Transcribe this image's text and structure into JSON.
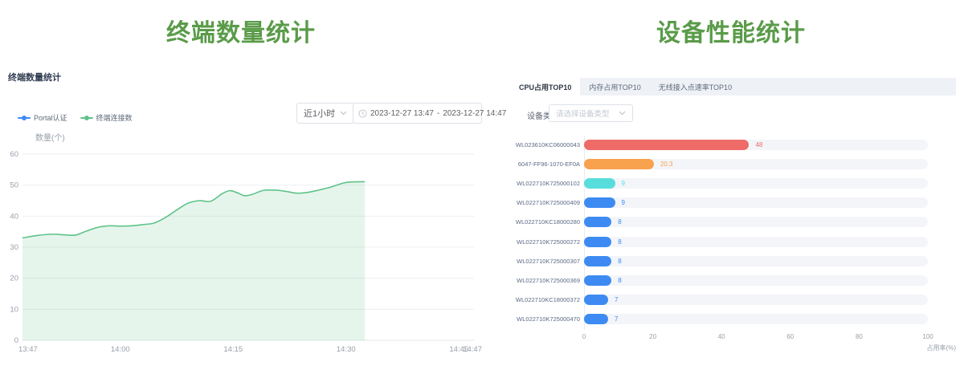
{
  "colors": {
    "title_green": "#5A9B49",
    "navy": "#303C52",
    "blue": "#3D8BF2",
    "line_green": "#5FC38A",
    "bar_red": "#EE6B68",
    "bar_orange": "#F8A24D",
    "bar_cyan": "#57DEDC",
    "bar_blue": "#3D8BF2",
    "bar_track": "#F3F5F9",
    "grid": "#ECEFF3",
    "tick_text": "#98A0AA"
  },
  "left": {
    "title_banner": "终端数量统计",
    "panel_title": "终端数量统计",
    "time_select": {
      "value": "近1小时"
    },
    "date_range": {
      "start": "2023-12-27 13:47",
      "sep": "-",
      "end": "2023-12-27 14:47"
    }
  },
  "right": {
    "title_banner": "设备性能统计",
    "tabs": [
      "CPU占用TOP10",
      "内存占用TOP10",
      "无线接入点速率TOP10"
    ],
    "active_tab": 0,
    "device_type_label": "设备类型",
    "device_type_placeholder": "请选择设备类型"
  },
  "chart_data": [
    {
      "id": "terminal-count-trend",
      "type": "area",
      "title": "终端数量统计",
      "ylabel": "数量(个)",
      "ylim": [
        0,
        60
      ],
      "yticks": [
        0,
        10,
        20,
        30,
        40,
        50,
        60
      ],
      "grid": true,
      "legend_position": "top-left",
      "x_domain_minutes": [
        0,
        60
      ],
      "xticks": [
        {
          "label": "13:47",
          "t": 0
        },
        {
          "label": "14:00",
          "t": 13
        },
        {
          "label": "14:15",
          "t": 28
        },
        {
          "label": "14:30",
          "t": 43
        },
        {
          "label": "14:45",
          "t": 58
        },
        {
          "label": "14:47",
          "t": 60
        }
      ],
      "legend": [
        {
          "name": "Portal认证",
          "color": "#3D8BF2"
        },
        {
          "name": "终端连接数",
          "color": "#5FC38A"
        }
      ],
      "series": [
        {
          "name": "Portal认证",
          "color": "#3D8BF2",
          "points": []
        },
        {
          "name": "终端连接数",
          "color": "#5FC38A",
          "fill_opacity": 0.16,
          "points": [
            [
              0,
              33
            ],
            [
              2,
              33.8
            ],
            [
              4,
              34.2
            ],
            [
              5.5,
              34
            ],
            [
              7,
              33.9
            ],
            [
              8.5,
              35.2
            ],
            [
              10,
              36.4
            ],
            [
              11.5,
              36.9
            ],
            [
              13,
              36.8
            ],
            [
              14.5,
              36.9
            ],
            [
              16,
              37.3
            ],
            [
              17.5,
              37.8
            ],
            [
              19,
              39.6
            ],
            [
              20.5,
              42
            ],
            [
              22,
              44.2
            ],
            [
              23.5,
              45
            ],
            [
              25,
              44.8
            ],
            [
              26.5,
              47.2
            ],
            [
              27.5,
              48.2
            ],
            [
              28.5,
              47.6
            ],
            [
              29.5,
              46.6
            ],
            [
              30.5,
              47
            ],
            [
              32,
              48.3
            ],
            [
              33.5,
              48.4
            ],
            [
              35,
              48
            ],
            [
              36.5,
              47.4
            ],
            [
              38,
              47.7
            ],
            [
              39.5,
              48.5
            ],
            [
              41,
              49.4
            ],
            [
              42.5,
              50.6
            ],
            [
              43.5,
              51
            ],
            [
              45.5,
              51.1
            ]
          ]
        }
      ]
    },
    {
      "id": "cpu-usage-top10",
      "type": "bar",
      "orientation": "horizontal",
      "title": "CPU占用TOP10",
      "xlabel": "占用率(%)",
      "xlim": [
        0,
        100
      ],
      "xticks": [
        0,
        20,
        40,
        60,
        80,
        100
      ],
      "categories": [
        "WL023610KC06000043",
        "6047-FF96-1070-EF0A",
        "WL022710K725000102",
        "WL022710K725000409",
        "WL022710KC18000280",
        "WL022710K725000272",
        "WL022710K725000307",
        "WL022710K725000369",
        "WL022710KC18000372",
        "WL022710K725000470"
      ],
      "values": [
        48,
        20.3,
        9,
        9,
        8,
        8,
        8,
        8,
        7,
        7
      ],
      "bar_colors": [
        "#EE6B68",
        "#F8A24D",
        "#57DEDC",
        "#3D8BF2",
        "#3D8BF2",
        "#3D8BF2",
        "#3D8BF2",
        "#3D8BF2",
        "#3D8BF2",
        "#3D8BF2"
      ],
      "track_color": "#F3F5F9"
    }
  ]
}
